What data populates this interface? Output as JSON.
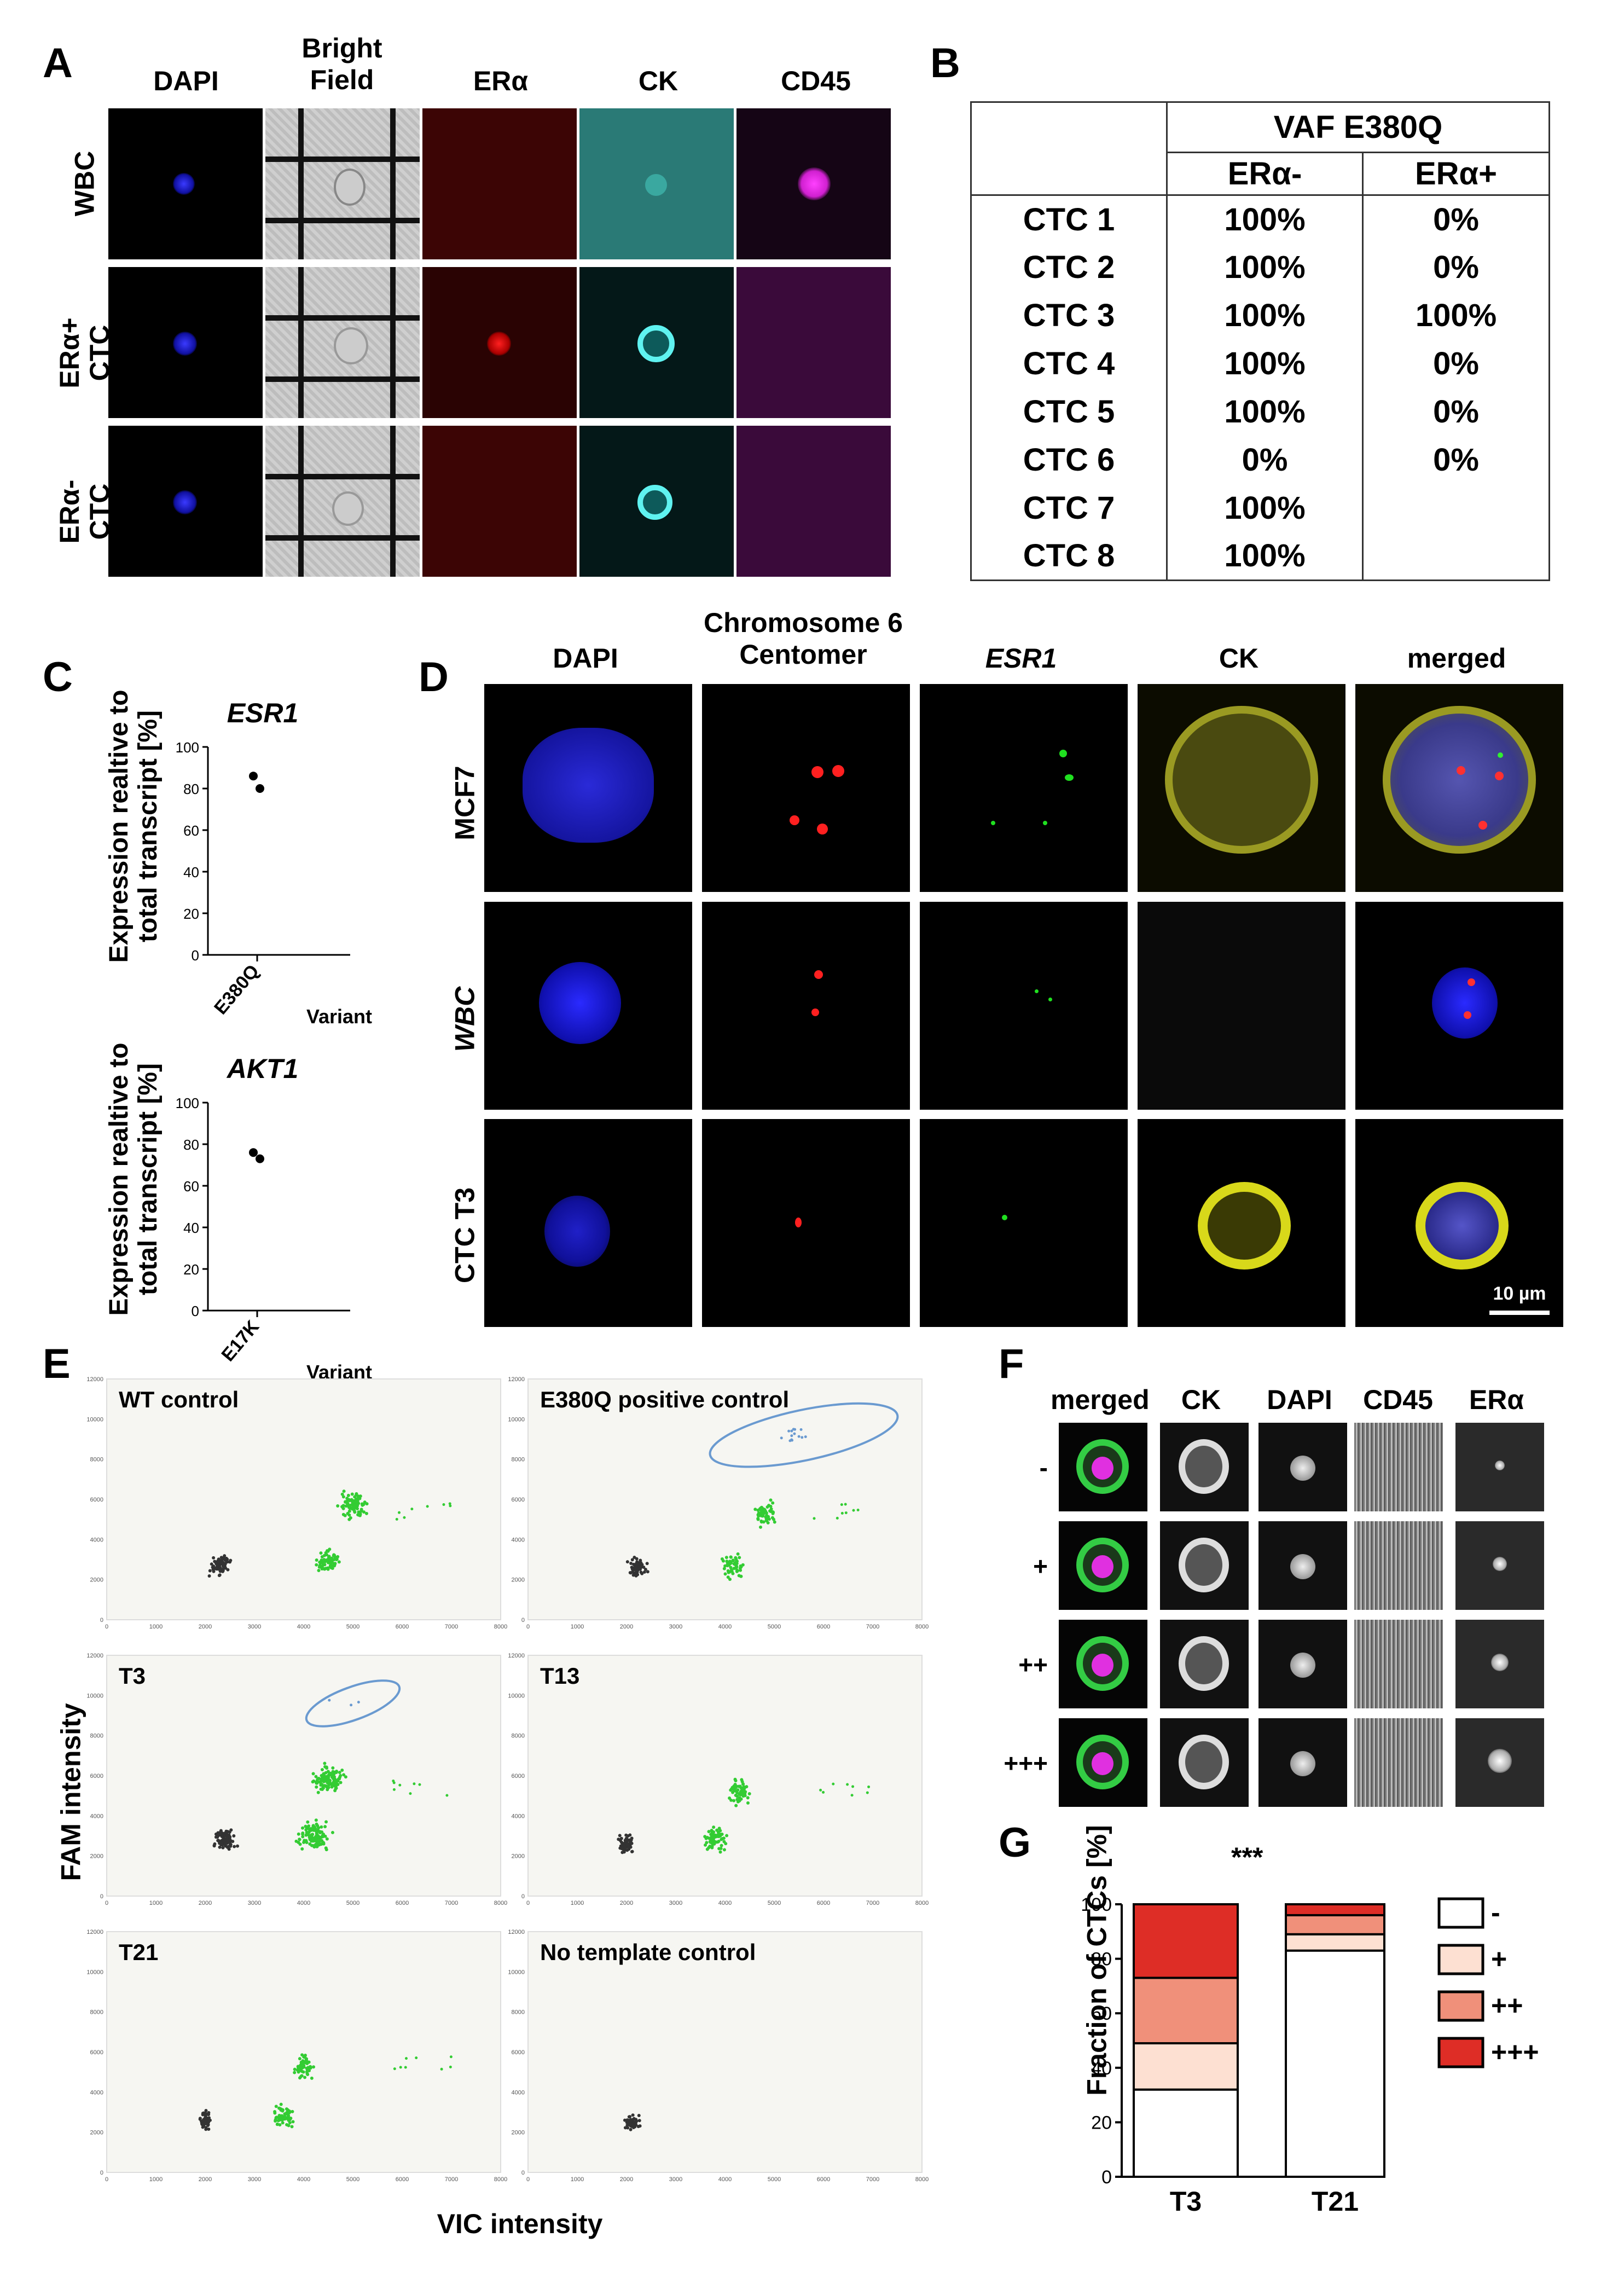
{
  "panel_letters": [
    "A",
    "B",
    "C",
    "D",
    "E",
    "F",
    "G"
  ],
  "panelA": {
    "columns": [
      "DAPI",
      "Bright\nField",
      "ERα",
      "CK",
      "CD45"
    ],
    "rows": [
      "WBC",
      "ERα+\nCTC",
      "ERα-\nCTC"
    ]
  },
  "panelB": {
    "header": "VAF E380Q",
    "subheaders": [
      "ERα-",
      "ERα+"
    ],
    "rows": [
      {
        "label": "CTC 1",
        "neg": "100%",
        "pos": "0%"
      },
      {
        "label": "CTC 2",
        "neg": "100%",
        "pos": "0%"
      },
      {
        "label": "CTC 3",
        "neg": "100%",
        "pos": "100%"
      },
      {
        "label": "CTC 4",
        "neg": "100%",
        "pos": "0%"
      },
      {
        "label": "CTC 5",
        "neg": "100%",
        "pos": "0%"
      },
      {
        "label": "CTC 6",
        "neg": "0%",
        "pos": "0%"
      },
      {
        "label": "CTC 7",
        "neg": "100%",
        "pos": ""
      },
      {
        "label": "CTC 8",
        "neg": "100%",
        "pos": ""
      }
    ]
  },
  "panelC": {
    "ylabel": "Expression realtive to\ntotal transcript [%]",
    "xlabel": "Variant",
    "plots": [
      {
        "title": "ESR1",
        "category": "E380Q",
        "values": [
          86,
          80
        ],
        "yticks": [
          "100",
          "80",
          "60",
          "40",
          "20",
          "0"
        ]
      },
      {
        "title": "AKT1",
        "category": "E17K",
        "values": [
          76,
          73
        ],
        "yticks": [
          "100",
          "80",
          "60",
          "40",
          "20",
          "0"
        ]
      }
    ]
  },
  "panelD": {
    "columns": [
      "DAPI",
      "Chromosome 6\nCentomer",
      "ESR1",
      "CK",
      "merged"
    ],
    "rows": [
      "MCF7",
      "WBC",
      "CTC T3"
    ],
    "scalebar": "10 µm"
  },
  "panelE": {
    "xlabel": "VIC intensity",
    "ylabel": "FAM intensity",
    "plots": [
      "WT control",
      "E380Q positive control",
      "T3",
      "T13",
      "T21",
      "No template control"
    ],
    "xticks": [
      "0",
      "1000",
      "2000",
      "3000",
      "4000",
      "5000",
      "6000",
      "7000",
      "8000"
    ],
    "yticks": [
      "12000",
      "10000",
      "8000",
      "6000",
      "4000",
      "2000",
      "0"
    ]
  },
  "panelF": {
    "columns": [
      "merged",
      "CK",
      "DAPI",
      "CD45",
      "ERα"
    ],
    "rows": [
      "-",
      "+",
      "++",
      "+++"
    ]
  },
  "chart_data": {
    "type": "bar",
    "stacked": true,
    "categories": [
      "T3",
      "T21"
    ],
    "ylabel": "Fraction of CTCs [%]",
    "ylim": [
      0,
      100
    ],
    "yticks": [
      "0",
      "20",
      "40",
      "60",
      "80",
      "100"
    ],
    "annotation": "***",
    "series": [
      {
        "name": "-",
        "color": "#ffffff",
        "values": [
          32,
          83
        ]
      },
      {
        "name": "+",
        "color": "#fde0d2",
        "values": [
          17,
          6
        ]
      },
      {
        "name": "++",
        "color": "#f0907a",
        "values": [
          24,
          7
        ]
      },
      {
        "name": "+++",
        "color": "#de2d26",
        "values": [
          27,
          4
        ]
      }
    ],
    "legend_position": "right"
  }
}
